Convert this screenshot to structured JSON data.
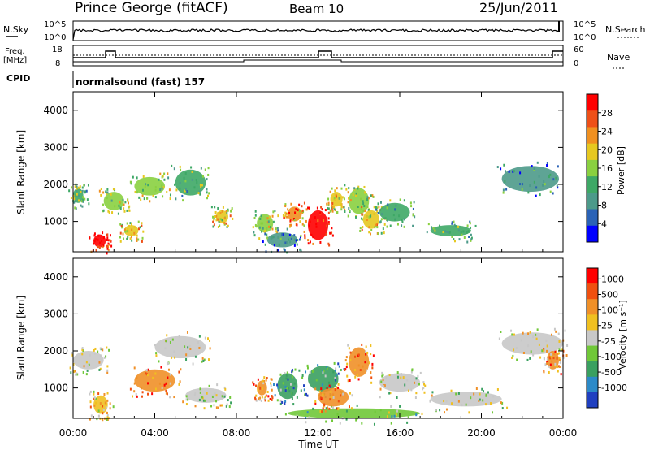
{
  "header": {
    "station": "Prince George (fitACF)",
    "beam": "Beam 10",
    "date": "25/Jun/2011"
  },
  "strips": {
    "nsky_label": "N.Sky",
    "nsky_ticks": [
      "10^5",
      "10^0"
    ],
    "nsearch_label": "N.Search",
    "nsearch_ticks": [
      "10^5",
      "10^0"
    ],
    "freq_label_line1": "Freq.",
    "freq_label_line2": "[MHz]",
    "freq_ticks": [
      "18",
      "8"
    ],
    "nave_label": "Nave",
    "nave_ticks": [
      "60",
      "0"
    ],
    "cpid_label": "CPID",
    "cpid_text": "normalsound (fast) 157"
  },
  "colors": {
    "power": [
      "#0000ff",
      "#2a62b6",
      "#4c9a8a",
      "#3ea866",
      "#8ad040",
      "#e6c820",
      "#f09020",
      "#ee5018",
      "#ff0000"
    ],
    "velocity": [
      "#2040c0",
      "#2c8ac8",
      "#3aa060",
      "#70c838",
      "#c8c8c8",
      "#f0c020",
      "#f09028",
      "#f05010",
      "#ff0000"
    ]
  },
  "chart_data": [
    {
      "type": "heatmap",
      "panel": "power",
      "ylabel": "Slant Range [km]",
      "ylim": [
        180,
        4500
      ],
      "yticks": [
        "1000",
        "2000",
        "3000",
        "4000"
      ],
      "colorbar_label": "Power [dB]",
      "colorbar_ticks": [
        "28",
        "24",
        "20",
        "16",
        "12",
        "8",
        "4"
      ],
      "regions": [
        {
          "t": [
            1.0,
            1.6
          ],
          "r": [
            300,
            650
          ],
          "level": 8
        },
        {
          "t": [
            0.0,
            0.5
          ],
          "r": [
            1500,
            1900
          ],
          "level": 3
        },
        {
          "t": [
            1.5,
            2.5
          ],
          "r": [
            1300,
            1800
          ],
          "level": 4
        },
        {
          "t": [
            2.5,
            3.2
          ],
          "r": [
            600,
            900
          ],
          "level": 5
        },
        {
          "t": [
            3.0,
            4.5
          ],
          "r": [
            1700,
            2200
          ],
          "level": 4
        },
        {
          "t": [
            5.0,
            6.5
          ],
          "r": [
            1700,
            2400
          ],
          "level": 3
        },
        {
          "t": [
            7.0,
            7.6
          ],
          "r": [
            950,
            1300
          ],
          "level": 5
        },
        {
          "t": [
            9.0,
            9.8
          ],
          "r": [
            700,
            1200
          ],
          "level": 4
        },
        {
          "t": [
            9.5,
            11.0
          ],
          "r": [
            300,
            700
          ],
          "level": 2
        },
        {
          "t": [
            10.5,
            11.2
          ],
          "r": [
            1000,
            1400
          ],
          "level": 6
        },
        {
          "t": [
            11.5,
            12.5
          ],
          "r": [
            500,
            1300
          ],
          "level": 8
        },
        {
          "t": [
            12.6,
            13.2
          ],
          "r": [
            1400,
            1800
          ],
          "level": 5
        },
        {
          "t": [
            13.5,
            14.5
          ],
          "r": [
            1200,
            1900
          ],
          "level": 4
        },
        {
          "t": [
            14.2,
            15.0
          ],
          "r": [
            800,
            1300
          ],
          "level": 5
        },
        {
          "t": [
            15.0,
            16.5
          ],
          "r": [
            1000,
            1500
          ],
          "level": 3
        },
        {
          "t": [
            17.5,
            19.5
          ],
          "r": [
            600,
            900
          ],
          "level": 3
        },
        {
          "t": [
            21.0,
            23.8
          ],
          "r": [
            1800,
            2500
          ],
          "level": 2
        }
      ]
    },
    {
      "type": "heatmap",
      "panel": "velocity",
      "ylabel": "Slant Range [km]",
      "ylim": [
        180,
        4500
      ],
      "yticks": [
        "1000",
        "2000",
        "3000",
        "4000"
      ],
      "colorbar_label": "Velocity [m s⁻¹]",
      "colorbar_ticks": [
        "1000",
        "500",
        "100",
        "25",
        "-25",
        "-100",
        "-500",
        "-1000"
      ],
      "regions": [
        {
          "t": [
            1.0,
            1.7
          ],
          "r": [
            300,
            800
          ],
          "level": 5
        },
        {
          "t": [
            0.0,
            1.5
          ],
          "r": [
            1500,
            2000
          ],
          "level": 4
        },
        {
          "t": [
            3.0,
            5.0
          ],
          "r": [
            900,
            1500
          ],
          "level": 6
        },
        {
          "t": [
            4.0,
            6.5
          ],
          "r": [
            1800,
            2400
          ],
          "level": 4
        },
        {
          "t": [
            5.5,
            7.5
          ],
          "r": [
            600,
            1000
          ],
          "level": 4
        },
        {
          "t": [
            9.0,
            9.5
          ],
          "r": [
            800,
            1200
          ],
          "level": 6
        },
        {
          "t": [
            10.0,
            11.0
          ],
          "r": [
            700,
            1400
          ],
          "level": 2
        },
        {
          "t": [
            10.5,
            17.0
          ],
          "r": [
            180,
            450
          ],
          "level": 3
        },
        {
          "t": [
            11.5,
            13.0
          ],
          "r": [
            900,
            1600
          ],
          "level": 2
        },
        {
          "t": [
            12.0,
            13.5
          ],
          "r": [
            500,
            1000
          ],
          "level": 6
        },
        {
          "t": [
            13.5,
            14.5
          ],
          "r": [
            1300,
            2100
          ],
          "level": 6
        },
        {
          "t": [
            15.0,
            17.0
          ],
          "r": [
            900,
            1400
          ],
          "level": 4
        },
        {
          "t": [
            17.5,
            21.0
          ],
          "r": [
            500,
            900
          ],
          "level": 4
        },
        {
          "t": [
            21.0,
            24.0
          ],
          "r": [
            1900,
            2500
          ],
          "level": 4
        },
        {
          "t": [
            23.2,
            23.8
          ],
          "r": [
            1500,
            2000
          ],
          "level": 6
        }
      ]
    }
  ],
  "x_axis": {
    "xlabel": "Time UT",
    "xlim": [
      0,
      24
    ],
    "ticks": [
      {
        "t": 0,
        "label": "00:00"
      },
      {
        "t": 4,
        "label": "04:00"
      },
      {
        "t": 8,
        "label": "08:00"
      },
      {
        "t": 12,
        "label": "12:00"
      },
      {
        "t": 16,
        "label": "16:00"
      },
      {
        "t": 20,
        "label": "20:00"
      },
      {
        "t": 24,
        "label": "00:00"
      }
    ]
  }
}
